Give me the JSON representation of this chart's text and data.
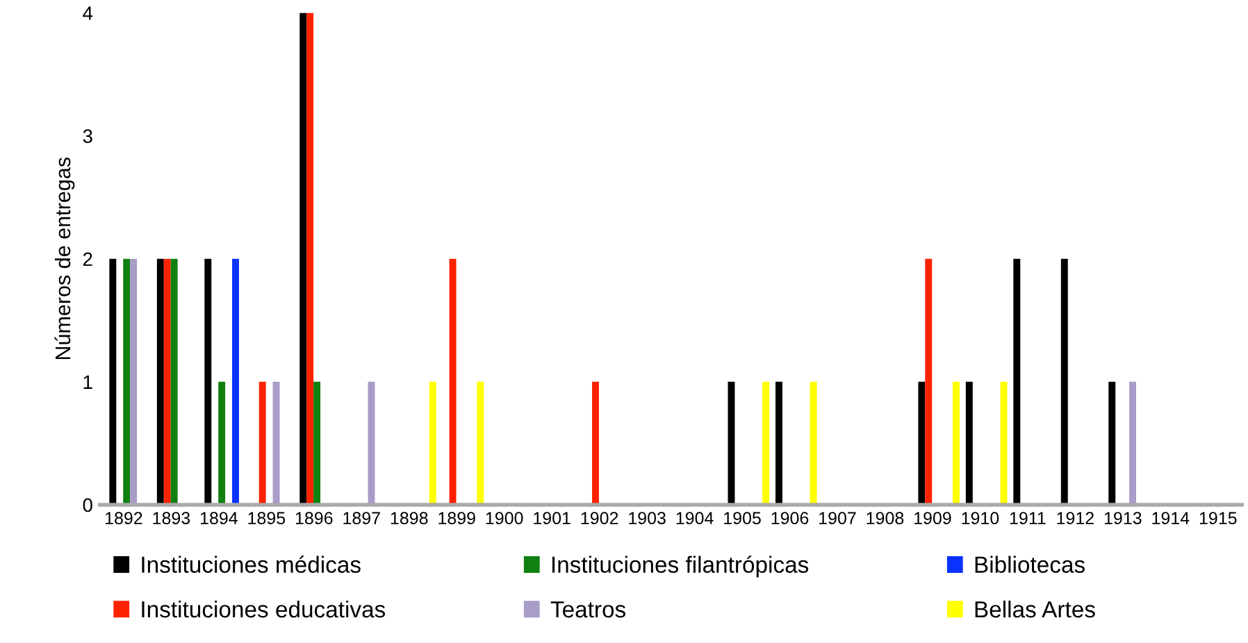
{
  "chart_data": {
    "type": "bar",
    "ylabel": "Números de entregas",
    "categories": [
      "1892",
      "1893",
      "1894",
      "1895",
      "1896",
      "1897",
      "1898",
      "1899",
      "1900",
      "1901",
      "1902",
      "1903",
      "1904",
      "1905",
      "1906",
      "1907",
      "1908",
      "1909",
      "1910",
      "1911",
      "1912",
      "1913",
      "1914",
      "1915"
    ],
    "series": [
      {
        "name": "Instituciones médicas",
        "color": "#000000",
        "values": [
          2,
          2,
          2,
          0,
          4,
          0,
          0,
          0,
          0,
          0,
          0,
          0,
          0,
          1,
          1,
          0,
          0,
          1,
          1,
          2,
          2,
          1,
          0,
          0
        ]
      },
      {
        "name": "Instituciones educativas",
        "color": "#ff2200",
        "values": [
          0,
          2,
          0,
          1,
          4,
          0,
          0,
          2,
          0,
          0,
          1,
          0,
          0,
          0,
          0,
          0,
          0,
          2,
          0,
          0,
          0,
          0,
          0,
          0
        ]
      },
      {
        "name": "Instituciones filantrópicas",
        "color": "#108010",
        "values": [
          2,
          2,
          1,
          0,
          1,
          0,
          0,
          0,
          0,
          0,
          0,
          0,
          0,
          0,
          0,
          0,
          0,
          0,
          0,
          0,
          0,
          0,
          0,
          0
        ]
      },
      {
        "name": "Teatros",
        "color": "#a89cc8",
        "values": [
          2,
          0,
          0,
          1,
          0,
          1,
          0,
          0,
          0,
          0,
          0,
          0,
          0,
          0,
          0,
          0,
          0,
          0,
          0,
          0,
          0,
          1,
          0,
          0
        ]
      },
      {
        "name": "Bibliotecas",
        "color": "#0a32ff",
        "values": [
          0,
          0,
          2,
          0,
          0,
          0,
          0,
          0,
          0,
          0,
          0,
          0,
          0,
          0,
          0,
          0,
          0,
          0,
          0,
          0,
          0,
          0,
          0,
          0
        ]
      },
      {
        "name": "Bellas Artes",
        "color": "#ffff00",
        "values": [
          0,
          0,
          0,
          0,
          0,
          0,
          1,
          1,
          0,
          0,
          0,
          0,
          0,
          1,
          1,
          0,
          0,
          1,
          1,
          0,
          0,
          0,
          0,
          0
        ]
      }
    ],
    "ylim": [
      0,
      4
    ],
    "yticks": [
      0,
      1,
      2,
      3,
      4
    ],
    "grid": false,
    "legend": "bottom"
  }
}
